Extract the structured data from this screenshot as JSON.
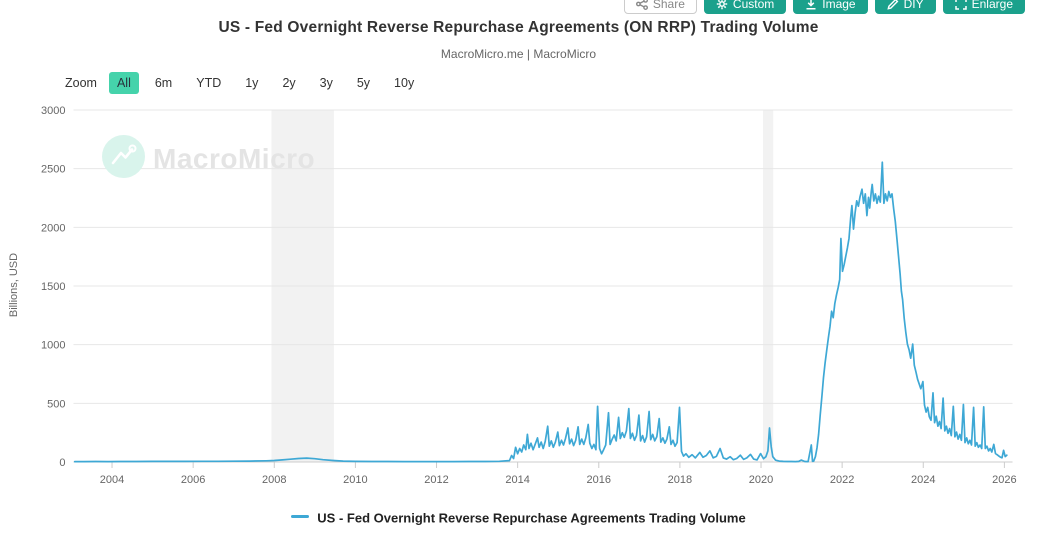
{
  "toolbar": {
    "share_label": "Share",
    "custom_label": "Custom",
    "image_label": "Image",
    "diy_label": "DIY",
    "enlarge_label": "Enlarge"
  },
  "header": {
    "title": "US - Fed Overnight Reverse Repurchase Agreements (ON RRP) Trading Volume",
    "source": "MacroMicro.me | MacroMicro"
  },
  "zoom_bar": {
    "label": "Zoom",
    "options": [
      "All",
      "6m",
      "YTD",
      "1y",
      "2y",
      "3y",
      "5y",
      "10y"
    ],
    "selected": "All"
  },
  "watermark": {
    "text": "MacroMicro"
  },
  "legend": {
    "label": "US - Fed Overnight Reverse Repurchase Agreements Trading Volume"
  },
  "colors": {
    "line": "#3ea8d5",
    "teal_button": "#1ba18c",
    "zoom_selected": "#45d3ab",
    "band": "#f2f2f2",
    "grid": "#e7e7e7",
    "axis": "#cccccc",
    "tick_text": "#666666"
  },
  "chart_data": {
    "type": "line",
    "title": "US - Fed Overnight Reverse Repurchase Agreements (ON RRP) Trading Volume",
    "xlabel": "",
    "ylabel": "Billions, USD",
    "x_ticks": [
      2004,
      2006,
      2008,
      2010,
      2012,
      2014,
      2016,
      2018,
      2020,
      2022,
      2024,
      2026
    ],
    "y_ticks": [
      0,
      500,
      1000,
      1500,
      2000,
      2500,
      3000
    ],
    "xlim": [
      2003.05,
      2026.2
    ],
    "ylim": [
      0,
      3000
    ],
    "grid": true,
    "legend_position": "bottom",
    "line_color": "#3ea8d5",
    "recession_bands": [
      [
        2007.93,
        2009.47
      ],
      [
        2020.05,
        2020.3
      ]
    ],
    "series": [
      {
        "name": "US - Fed Overnight Reverse Repurchase Agreements Trading Volume",
        "points": [
          [
            2003.08,
            3
          ],
          [
            2003.3,
            3
          ],
          [
            2003.6,
            4
          ],
          [
            2003.9,
            3
          ],
          [
            2004.2,
            4
          ],
          [
            2004.6,
            4
          ],
          [
            2005.0,
            5
          ],
          [
            2005.4,
            5
          ],
          [
            2005.8,
            5
          ],
          [
            2006.2,
            6
          ],
          [
            2006.6,
            6
          ],
          [
            2007.0,
            7
          ],
          [
            2007.4,
            8
          ],
          [
            2007.8,
            10
          ],
          [
            2008.0,
            13
          ],
          [
            2008.2,
            18
          ],
          [
            2008.4,
            24
          ],
          [
            2008.6,
            30
          ],
          [
            2008.8,
            33
          ],
          [
            2009.0,
            28
          ],
          [
            2009.2,
            20
          ],
          [
            2009.45,
            13
          ],
          [
            2009.7,
            8
          ],
          [
            2010.0,
            5
          ],
          [
            2010.4,
            4
          ],
          [
            2010.8,
            4
          ],
          [
            2011.2,
            3
          ],
          [
            2011.6,
            3
          ],
          [
            2012.0,
            3
          ],
          [
            2012.4,
            3
          ],
          [
            2012.8,
            4
          ],
          [
            2013.2,
            4
          ],
          [
            2013.55,
            6
          ],
          [
            2013.8,
            12
          ],
          [
            2013.85,
            55
          ],
          [
            2013.9,
            30
          ],
          [
            2013.95,
            125
          ],
          [
            2014.0,
            70
          ],
          [
            2014.05,
            115
          ],
          [
            2014.1,
            85
          ],
          [
            2014.15,
            145
          ],
          [
            2014.2,
            105
          ],
          [
            2014.24,
            235
          ],
          [
            2014.28,
            115
          ],
          [
            2014.33,
            160
          ],
          [
            2014.38,
            105
          ],
          [
            2014.43,
            150
          ],
          [
            2014.49,
            205
          ],
          [
            2014.53,
            125
          ],
          [
            2014.58,
            170
          ],
          [
            2014.63,
            115
          ],
          [
            2014.68,
            175
          ],
          [
            2014.74,
            305
          ],
          [
            2014.78,
            135
          ],
          [
            2014.83,
            180
          ],
          [
            2014.88,
            125
          ],
          [
            2014.93,
            170
          ],
          [
            2014.99,
            255
          ],
          [
            2015.03,
            140
          ],
          [
            2015.08,
            185
          ],
          [
            2015.13,
            145
          ],
          [
            2015.18,
            200
          ],
          [
            2015.24,
            290
          ],
          [
            2015.28,
            155
          ],
          [
            2015.33,
            195
          ],
          [
            2015.38,
            140
          ],
          [
            2015.43,
            185
          ],
          [
            2015.49,
            300
          ],
          [
            2015.53,
            150
          ],
          [
            2015.58,
            195
          ],
          [
            2015.63,
            150
          ],
          [
            2015.68,
            205
          ],
          [
            2015.74,
            320
          ],
          [
            2015.78,
            160
          ],
          [
            2015.83,
            115
          ],
          [
            2015.88,
            150
          ],
          [
            2015.93,
            105
          ],
          [
            2015.97,
            475
          ],
          [
            2016.02,
            115
          ],
          [
            2016.07,
            70
          ],
          [
            2016.12,
            105
          ],
          [
            2016.17,
            145
          ],
          [
            2016.24,
            420
          ],
          [
            2016.28,
            150
          ],
          [
            2016.33,
            195
          ],
          [
            2016.38,
            230
          ],
          [
            2016.43,
            180
          ],
          [
            2016.49,
            380
          ],
          [
            2016.53,
            200
          ],
          [
            2016.58,
            250
          ],
          [
            2016.63,
            210
          ],
          [
            2016.68,
            265
          ],
          [
            2016.74,
            455
          ],
          [
            2016.78,
            200
          ],
          [
            2016.83,
            245
          ],
          [
            2016.88,
            185
          ],
          [
            2016.93,
            225
          ],
          [
            2016.99,
            400
          ],
          [
            2017.03,
            180
          ],
          [
            2017.08,
            225
          ],
          [
            2017.13,
            170
          ],
          [
            2017.18,
            215
          ],
          [
            2017.24,
            430
          ],
          [
            2017.28,
            190
          ],
          [
            2017.33,
            235
          ],
          [
            2017.38,
            180
          ],
          [
            2017.43,
            215
          ],
          [
            2017.49,
            370
          ],
          [
            2017.53,
            170
          ],
          [
            2017.58,
            205
          ],
          [
            2017.63,
            160
          ],
          [
            2017.68,
            195
          ],
          [
            2017.74,
            300
          ],
          [
            2017.78,
            150
          ],
          [
            2017.83,
            185
          ],
          [
            2017.88,
            135
          ],
          [
            2017.93,
            165
          ],
          [
            2017.99,
            465
          ],
          [
            2018.04,
            90
          ],
          [
            2018.09,
            50
          ],
          [
            2018.15,
            70
          ],
          [
            2018.22,
            40
          ],
          [
            2018.3,
            62
          ],
          [
            2018.38,
            35
          ],
          [
            2018.49,
            82
          ],
          [
            2018.57,
            40
          ],
          [
            2018.65,
            55
          ],
          [
            2018.74,
            95
          ],
          [
            2018.82,
            35
          ],
          [
            2018.9,
            48
          ],
          [
            2018.99,
            115
          ],
          [
            2019.07,
            35
          ],
          [
            2019.15,
            25
          ],
          [
            2019.24,
            45
          ],
          [
            2019.32,
            20
          ],
          [
            2019.4,
            30
          ],
          [
            2019.49,
            58
          ],
          [
            2019.57,
            22
          ],
          [
            2019.65,
            35
          ],
          [
            2019.74,
            65
          ],
          [
            2019.82,
            25
          ],
          [
            2019.9,
            18
          ],
          [
            2019.99,
            72
          ],
          [
            2020.06,
            28
          ],
          [
            2020.12,
            45
          ],
          [
            2020.17,
            95
          ],
          [
            2020.21,
            290
          ],
          [
            2020.25,
            130
          ],
          [
            2020.29,
            45
          ],
          [
            2020.36,
            15
          ],
          [
            2020.45,
            8
          ],
          [
            2020.55,
            5
          ],
          [
            2020.65,
            4
          ],
          [
            2020.75,
            4
          ],
          [
            2020.85,
            3
          ],
          [
            2020.93,
            5
          ],
          [
            2020.99,
            16
          ],
          [
            2021.08,
            4
          ],
          [
            2021.16,
            3
          ],
          [
            2021.24,
            145
          ],
          [
            2021.27,
            6
          ],
          [
            2021.3,
            8
          ],
          [
            2021.34,
            45
          ],
          [
            2021.38,
            120
          ],
          [
            2021.42,
            235
          ],
          [
            2021.46,
            400
          ],
          [
            2021.5,
            560
          ],
          [
            2021.54,
            720
          ],
          [
            2021.58,
            845
          ],
          [
            2021.62,
            950
          ],
          [
            2021.66,
            1060
          ],
          [
            2021.7,
            1155
          ],
          [
            2021.74,
            1285
          ],
          [
            2021.78,
            1230
          ],
          [
            2021.82,
            1350
          ],
          [
            2021.86,
            1425
          ],
          [
            2021.9,
            1485
          ],
          [
            2021.94,
            1555
          ],
          [
            2021.97,
            1905
          ],
          [
            2022.01,
            1625
          ],
          [
            2022.05,
            1685
          ],
          [
            2022.09,
            1755
          ],
          [
            2022.13,
            1825
          ],
          [
            2022.17,
            1905
          ],
          [
            2022.21,
            2085
          ],
          [
            2022.24,
            2185
          ],
          [
            2022.28,
            1985
          ],
          [
            2022.32,
            2125
          ],
          [
            2022.36,
            2225
          ],
          [
            2022.4,
            2180
          ],
          [
            2022.44,
            2260
          ],
          [
            2022.49,
            2325
          ],
          [
            2022.53,
            2205
          ],
          [
            2022.57,
            2285
          ],
          [
            2022.61,
            2100
          ],
          [
            2022.65,
            2255
          ],
          [
            2022.68,
            2165
          ],
          [
            2022.72,
            2305
          ],
          [
            2022.74,
            2365
          ],
          [
            2022.78,
            2225
          ],
          [
            2022.82,
            2285
          ],
          [
            2022.86,
            2205
          ],
          [
            2022.9,
            2265
          ],
          [
            2022.94,
            2215
          ],
          [
            2022.99,
            2555
          ],
          [
            2023.03,
            2205
          ],
          [
            2023.07,
            2285
          ],
          [
            2023.11,
            2225
          ],
          [
            2023.15,
            2305
          ],
          [
            2023.19,
            2255
          ],
          [
            2023.23,
            2285
          ],
          [
            2023.27,
            2155
          ],
          [
            2023.31,
            2050
          ],
          [
            2023.35,
            1905
          ],
          [
            2023.39,
            1755
          ],
          [
            2023.43,
            1605
          ],
          [
            2023.46,
            1455
          ],
          [
            2023.49,
            1385
          ],
          [
            2023.53,
            1225
          ],
          [
            2023.57,
            1105
          ],
          [
            2023.61,
            1005
          ],
          [
            2023.65,
            955
          ],
          [
            2023.69,
            885
          ],
          [
            2023.74,
            1005
          ],
          [
            2023.78,
            825
          ],
          [
            2023.82,
            765
          ],
          [
            2023.86,
            705
          ],
          [
            2023.9,
            665
          ],
          [
            2023.94,
            625
          ],
          [
            2023.99,
            685
          ],
          [
            2024.03,
            485
          ],
          [
            2024.07,
            425
          ],
          [
            2024.11,
            465
          ],
          [
            2024.15,
            385
          ],
          [
            2024.19,
            355
          ],
          [
            2024.24,
            590
          ],
          [
            2024.28,
            335
          ],
          [
            2024.32,
            390
          ],
          [
            2024.36,
            305
          ],
          [
            2024.4,
            345
          ],
          [
            2024.44,
            285
          ],
          [
            2024.49,
            545
          ],
          [
            2024.53,
            265
          ],
          [
            2024.57,
            305
          ],
          [
            2024.61,
            245
          ],
          [
            2024.65,
            285
          ],
          [
            2024.69,
            225
          ],
          [
            2024.74,
            475
          ],
          [
            2024.78,
            215
          ],
          [
            2024.82,
            255
          ],
          [
            2024.86,
            195
          ],
          [
            2024.9,
            235
          ],
          [
            2024.94,
            185
          ],
          [
            2024.99,
            490
          ],
          [
            2025.03,
            165
          ],
          [
            2025.07,
            205
          ],
          [
            2025.11,
            155
          ],
          [
            2025.15,
            185
          ],
          [
            2025.19,
            145
          ],
          [
            2025.24,
            465
          ],
          [
            2025.28,
            135
          ],
          [
            2025.32,
            165
          ],
          [
            2025.36,
            125
          ],
          [
            2025.4,
            145
          ],
          [
            2025.44,
            115
          ],
          [
            2025.49,
            470
          ],
          [
            2025.53,
            115
          ],
          [
            2025.57,
            135
          ],
          [
            2025.61,
            95
          ],
          [
            2025.65,
            115
          ],
          [
            2025.69,
            85
          ],
          [
            2025.74,
            150
          ],
          [
            2025.78,
            72
          ],
          [
            2025.82,
            62
          ],
          [
            2025.86,
            52
          ],
          [
            2025.9,
            42
          ],
          [
            2025.94,
            36
          ],
          [
            2025.98,
            100
          ],
          [
            2026.02,
            46
          ],
          [
            2026.06,
            58
          ]
        ]
      }
    ]
  }
}
